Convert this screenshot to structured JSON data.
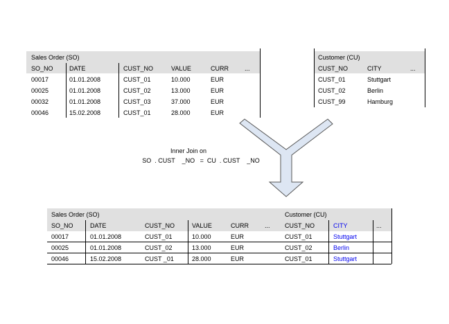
{
  "sales_order": {
    "title": "Sales Order    (SO)",
    "columns": [
      "SO_NO",
      "DATE",
      "CUST_NO",
      "VALUE",
      "CURR",
      "..."
    ],
    "rows": [
      [
        "00017",
        "01.01.2008",
        "CUST_01",
        "10.000",
        "EUR"
      ],
      [
        "00025",
        "01.01.2008",
        "CUST_02",
        "13.000",
        "EUR"
      ],
      [
        "00032",
        "01.01.2008",
        "CUST_03",
        "37.000",
        "EUR"
      ],
      [
        "00046",
        "15.02.2008",
        "CUST_01",
        "28.000",
        "EUR"
      ]
    ]
  },
  "customer": {
    "title": "Customer    (CU)",
    "columns": [
      "CUST_NO",
      "CITY",
      "..."
    ],
    "rows": [
      [
        "CUST_01",
        "Stuttgart"
      ],
      [
        "CUST_02",
        "Berlin"
      ],
      [
        "CUST_99",
        "Hamburg"
      ]
    ]
  },
  "join": {
    "line1": "Inner Join on",
    "line2": "SO  . CUST    _NO   =  CU  . CUST    _NO"
  },
  "result": {
    "title_so": "Sales Order    (SO)",
    "title_cu": "Customer    (CU)",
    "columns": [
      "SO_NO",
      "DATE",
      "CUST_NO",
      "VALUE",
      "CURR",
      "...",
      "CUST_NO",
      "CITY",
      "..."
    ],
    "rows": [
      [
        "00017",
        "01.01.2008",
        "CUST_01",
        "10.000",
        "EUR",
        "",
        "CUST_01",
        "Stuttgart"
      ],
      [
        "00025",
        "01.01.2008",
        "CUST_02",
        "13.000",
        "EUR",
        "",
        "CUST_02",
        "Berlin"
      ],
      [
        "00046",
        "15.02.2008",
        "CUST _01",
        "28.000",
        "EUR",
        "",
        "CUST_01",
        "Stuttgart"
      ]
    ]
  },
  "colors": {
    "header_band": "#e0e0e0",
    "highlight": "#0000ee",
    "arrow_fill": "#dde6f3",
    "arrow_stroke": "#555555"
  }
}
